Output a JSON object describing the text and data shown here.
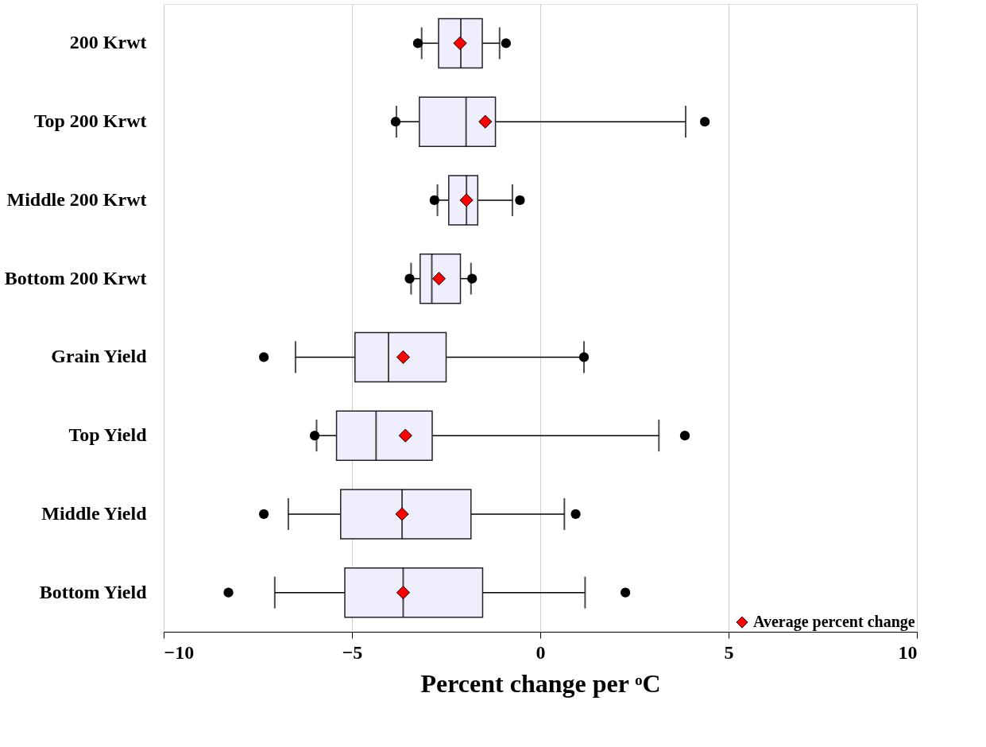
{
  "chart_data": {
    "type": "box",
    "orientation": "horizontal",
    "categories": [
      "200 Krwt",
      "Top 200 Krwt",
      "Middle 200 Krwt",
      "Bottom 200 Krwt",
      "Grain Yield",
      "Top Yield",
      "Middle Yield",
      "Bottom Yield"
    ],
    "color": "#eeeefc",
    "boxes": [
      {
        "low": -3.15,
        "q1": -2.7,
        "median": -2.11,
        "q3": -1.54,
        "high": -1.08,
        "outliers": [
          -3.25,
          -0.91
        ]
      },
      {
        "low": -3.82,
        "q1": -3.21,
        "median": -1.97,
        "q3": -1.19,
        "high": 3.86,
        "outliers": [
          -3.84,
          4.37
        ]
      },
      {
        "low": -2.73,
        "q1": -2.43,
        "median": -1.96,
        "q3": -1.66,
        "high": -0.74,
        "outliers": [
          -2.81,
          -0.54
        ]
      },
      {
        "low": -3.43,
        "q1": -3.19,
        "median": -2.88,
        "q3": -2.12,
        "high": -1.84,
        "outliers": [
          -3.47,
          -1.81
        ]
      },
      {
        "low": -6.5,
        "q1": -4.92,
        "median": -4.03,
        "q3": -2.5,
        "high": 1.16,
        "outliers": [
          -7.34,
          1.16
        ]
      },
      {
        "low": -5.94,
        "q1": -5.41,
        "median": -4.36,
        "q3": -2.87,
        "high": 3.15,
        "outliers": [
          -5.99,
          3.84
        ]
      },
      {
        "low": -6.69,
        "q1": -5.3,
        "median": -3.67,
        "q3": -1.84,
        "high": 0.64,
        "outliers": [
          -7.34,
          0.94
        ]
      },
      {
        "low": -7.05,
        "q1": -5.19,
        "median": -3.64,
        "q3": -1.53,
        "high": 1.19,
        "outliers": [
          -8.28,
          2.26
        ]
      }
    ],
    "series": [
      {
        "name": "Average percent change",
        "type": "scatter",
        "marker": "diamond",
        "color": "#ff0000",
        "values": [
          -2.13,
          -1.46,
          -1.96,
          -2.69,
          -3.64,
          -3.58,
          -3.67,
          -3.64
        ]
      }
    ],
    "xlim": [
      -10,
      10
    ],
    "xticks": [
      -10,
      -5,
      0,
      5,
      10
    ],
    "xlabel": "Percent change per ᵒC",
    "grid": "x",
    "legend": "bottom right"
  }
}
